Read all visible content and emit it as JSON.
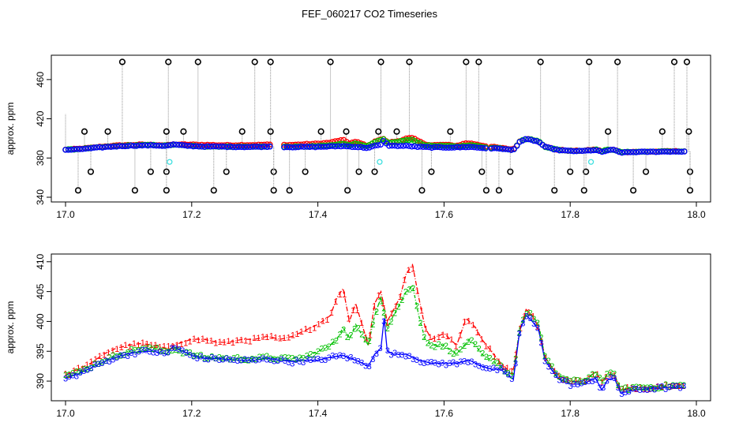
{
  "title": "FEF_060217  CO2 Timeseries",
  "colors": {
    "series1": "#ff0000",
    "series2": "#00c000",
    "series3": "#0000ff",
    "outlier": "#000000",
    "cyan": "#40e0e0",
    "vline": "#909090"
  },
  "chart_data": [
    {
      "type": "scatter",
      "title": "",
      "ylabel": "approx. ppm",
      "xlabel": "",
      "xlim": [
        17.0,
        18.0
      ],
      "ylim": [
        340,
        480
      ],
      "xticks": [
        "17.0",
        "17.2",
        "17.4",
        "17.6",
        "17.8",
        "18.0"
      ],
      "yticks": [
        "340",
        "380",
        "420",
        "460"
      ],
      "outliers_high": [
        17.09,
        17.163,
        17.21,
        17.3,
        17.325,
        17.42,
        17.5,
        17.545,
        17.635,
        17.655,
        17.753,
        17.83,
        17.875,
        17.965,
        17.985
      ],
      "outliers_mid_high": [
        17.03,
        17.067,
        17.16,
        17.187,
        17.28,
        17.325,
        17.405,
        17.445,
        17.496,
        17.525,
        17.61,
        17.86,
        17.946,
        17.988
      ],
      "outliers_low": [
        17.04,
        17.135,
        17.16,
        17.255,
        17.33,
        17.38,
        17.465,
        17.49,
        17.58,
        17.66,
        17.705,
        17.8,
        17.825,
        17.92,
        17.99
      ],
      "outliers_bottom": [
        17.02,
        17.11,
        17.16,
        17.235,
        17.33,
        17.355,
        17.447,
        17.565,
        17.667,
        17.687,
        17.775,
        17.822,
        17.9,
        17.99
      ],
      "cyan_points": [
        [
          17.165,
          376
        ],
        [
          17.498,
          376
        ],
        [
          17.833,
          376
        ]
      ]
    },
    {
      "type": "line",
      "title": "",
      "ylabel": "approx. ppm",
      "xlabel": "",
      "xlim": [
        17.0,
        18.0
      ],
      "ylim": [
        387.5,
        410.5
      ],
      "xticks": [
        "17.0",
        "17.2",
        "17.4",
        "17.6",
        "17.8",
        "18.0"
      ],
      "yticks": [
        "390",
        "395",
        "400",
        "405",
        "410"
      ],
      "series": [
        {
          "name": "1",
          "points": [
            [
              17.0,
              391
            ],
            [
              17.02,
              392
            ],
            [
              17.04,
              393
            ],
            [
              17.06,
              394.5
            ],
            [
              17.08,
              395.5
            ],
            [
              17.1,
              396
            ],
            [
              17.12,
              396.3
            ],
            [
              17.14,
              396
            ],
            [
              17.16,
              395.5
            ],
            [
              17.17,
              396
            ],
            [
              17.2,
              397
            ],
            [
              17.22,
              397
            ],
            [
              17.24,
              396.5
            ],
            [
              17.26,
              396.5
            ],
            [
              17.28,
              397
            ],
            [
              17.3,
              397
            ],
            [
              17.32,
              397.5
            ],
            [
              17.34,
              397
            ],
            [
              17.36,
              397.5
            ],
            [
              17.38,
              398.5
            ],
            [
              17.4,
              399.5
            ],
            [
              17.42,
              401
            ],
            [
              17.43,
              404
            ],
            [
              17.44,
              405.5
            ],
            [
              17.45,
              400
            ],
            [
              17.46,
              403
            ],
            [
              17.48,
              396
            ],
            [
              17.49,
              403
            ],
            [
              17.5,
              405
            ],
            [
              17.51,
              400
            ],
            [
              17.52,
              402
            ],
            [
              17.53,
              404
            ],
            [
              17.54,
              408
            ],
            [
              17.55,
              409.5
            ],
            [
              17.56,
              404
            ],
            [
              17.57,
              399
            ],
            [
              17.58,
              397
            ],
            [
              17.6,
              398
            ],
            [
              17.62,
              396
            ],
            [
              17.635,
              400.5
            ],
            [
              17.65,
              399
            ],
            [
              17.66,
              397
            ],
            [
              17.675,
              395
            ],
            [
              17.69,
              393
            ],
            [
              17.7,
              392
            ],
            [
              17.71,
              392
            ],
            [
              17.72,
              398.5
            ],
            [
              17.73,
              402
            ],
            [
              17.74,
              401
            ],
            [
              17.75,
              399
            ],
            [
              17.76,
              394
            ],
            [
              17.78,
              391
            ],
            [
              17.8,
              390
            ],
            [
              17.82,
              390
            ],
            [
              17.84,
              391.5
            ],
            [
              17.85,
              390
            ],
            [
              17.86,
              391
            ],
            [
              17.87,
              391
            ],
            [
              17.88,
              388.5
            ],
            [
              17.9,
              389
            ],
            [
              17.93,
              389
            ],
            [
              17.96,
              389.5
            ],
            [
              17.98,
              389.5
            ]
          ]
        },
        {
          "name": "2",
          "points": [
            [
              17.0,
              391
            ],
            [
              17.02,
              391.5
            ],
            [
              17.04,
              392.5
            ],
            [
              17.06,
              393.5
            ],
            [
              17.08,
              394.3
            ],
            [
              17.1,
              395
            ],
            [
              17.12,
              395.5
            ],
            [
              17.14,
              395.5
            ],
            [
              17.16,
              395
            ],
            [
              17.17,
              395.5
            ],
            [
              17.2,
              394.5
            ],
            [
              17.22,
              394
            ],
            [
              17.24,
              394
            ],
            [
              17.26,
              393.8
            ],
            [
              17.28,
              393.8
            ],
            [
              17.3,
              393.8
            ],
            [
              17.32,
              394
            ],
            [
              17.34,
              393.8
            ],
            [
              17.36,
              393.8
            ],
            [
              17.38,
              394
            ],
            [
              17.4,
              395
            ],
            [
              17.42,
              396
            ],
            [
              17.43,
              397
            ],
            [
              17.44,
              399
            ],
            [
              17.45,
              397
            ],
            [
              17.46,
              399.5
            ],
            [
              17.48,
              396
            ],
            [
              17.49,
              401
            ],
            [
              17.5,
              404
            ],
            [
              17.51,
              399
            ],
            [
              17.52,
              401
            ],
            [
              17.53,
              403
            ],
            [
              17.54,
              405
            ],
            [
              17.55,
              406
            ],
            [
              17.56,
              401
            ],
            [
              17.57,
              397
            ],
            [
              17.58,
              396
            ],
            [
              17.6,
              396
            ],
            [
              17.62,
              394.5
            ],
            [
              17.64,
              397
            ],
            [
              17.65,
              396
            ],
            [
              17.66,
              394.5
            ],
            [
              17.675,
              393.5
            ],
            [
              17.69,
              392.5
            ],
            [
              17.7,
              391.5
            ],
            [
              17.71,
              391
            ],
            [
              17.72,
              399
            ],
            [
              17.73,
              401.5
            ],
            [
              17.74,
              401
            ],
            [
              17.75,
              399.5
            ],
            [
              17.76,
              394
            ],
            [
              17.78,
              391
            ],
            [
              17.8,
              390
            ],
            [
              17.82,
              390
            ],
            [
              17.84,
              391.5
            ],
            [
              17.85,
              390
            ],
            [
              17.86,
              391.2
            ],
            [
              17.87,
              391.2
            ],
            [
              17.88,
              388.5
            ],
            [
              17.9,
              389
            ],
            [
              17.93,
              389
            ],
            [
              17.96,
              389.3
            ],
            [
              17.98,
              389.3
            ]
          ]
        },
        {
          "name": "3",
          "points": [
            [
              17.0,
              390.5
            ],
            [
              17.02,
              391.2
            ],
            [
              17.04,
              392.2
            ],
            [
              17.06,
              393.2
            ],
            [
              17.08,
              394
            ],
            [
              17.1,
              394.6
            ],
            [
              17.12,
              395
            ],
            [
              17.14,
              395
            ],
            [
              17.16,
              394.5
            ],
            [
              17.17,
              395.8
            ],
            [
              17.2,
              394.3
            ],
            [
              17.22,
              393.8
            ],
            [
              17.24,
              393.8
            ],
            [
              17.26,
              393.6
            ],
            [
              17.28,
              393.5
            ],
            [
              17.3,
              393.5
            ],
            [
              17.32,
              393.8
            ],
            [
              17.34,
              393.5
            ],
            [
              17.36,
              393.3
            ],
            [
              17.38,
              393.5
            ],
            [
              17.4,
              393.5
            ],
            [
              17.42,
              394
            ],
            [
              17.44,
              394.3
            ],
            [
              17.46,
              393.5
            ],
            [
              17.48,
              392.5
            ],
            [
              17.49,
              394.5
            ],
            [
              17.5,
              395.5
            ],
            [
              17.505,
              400.5
            ],
            [
              17.51,
              395
            ],
            [
              17.52,
              394.5
            ],
            [
              17.54,
              394.5
            ],
            [
              17.56,
              393.5
            ],
            [
              17.58,
              393
            ],
            [
              17.6,
              393
            ],
            [
              17.62,
              393
            ],
            [
              17.64,
              393.5
            ],
            [
              17.66,
              392.5
            ],
            [
              17.675,
              392
            ],
            [
              17.69,
              392
            ],
            [
              17.7,
              391
            ],
            [
              17.71,
              390.3
            ],
            [
              17.72,
              398.5
            ],
            [
              17.73,
              401
            ],
            [
              17.74,
              400
            ],
            [
              17.75,
              398.5
            ],
            [
              17.76,
              393.5
            ],
            [
              17.78,
              390.5
            ],
            [
              17.8,
              389.5
            ],
            [
              17.82,
              389.5
            ],
            [
              17.84,
              390.5
            ],
            [
              17.85,
              388.5
            ],
            [
              17.86,
              390.3
            ],
            [
              17.87,
              390.5
            ],
            [
              17.88,
              388
            ],
            [
              17.9,
              388.5
            ],
            [
              17.93,
              388.8
            ],
            [
              17.96,
              389
            ],
            [
              17.98,
              389
            ]
          ]
        }
      ]
    }
  ]
}
